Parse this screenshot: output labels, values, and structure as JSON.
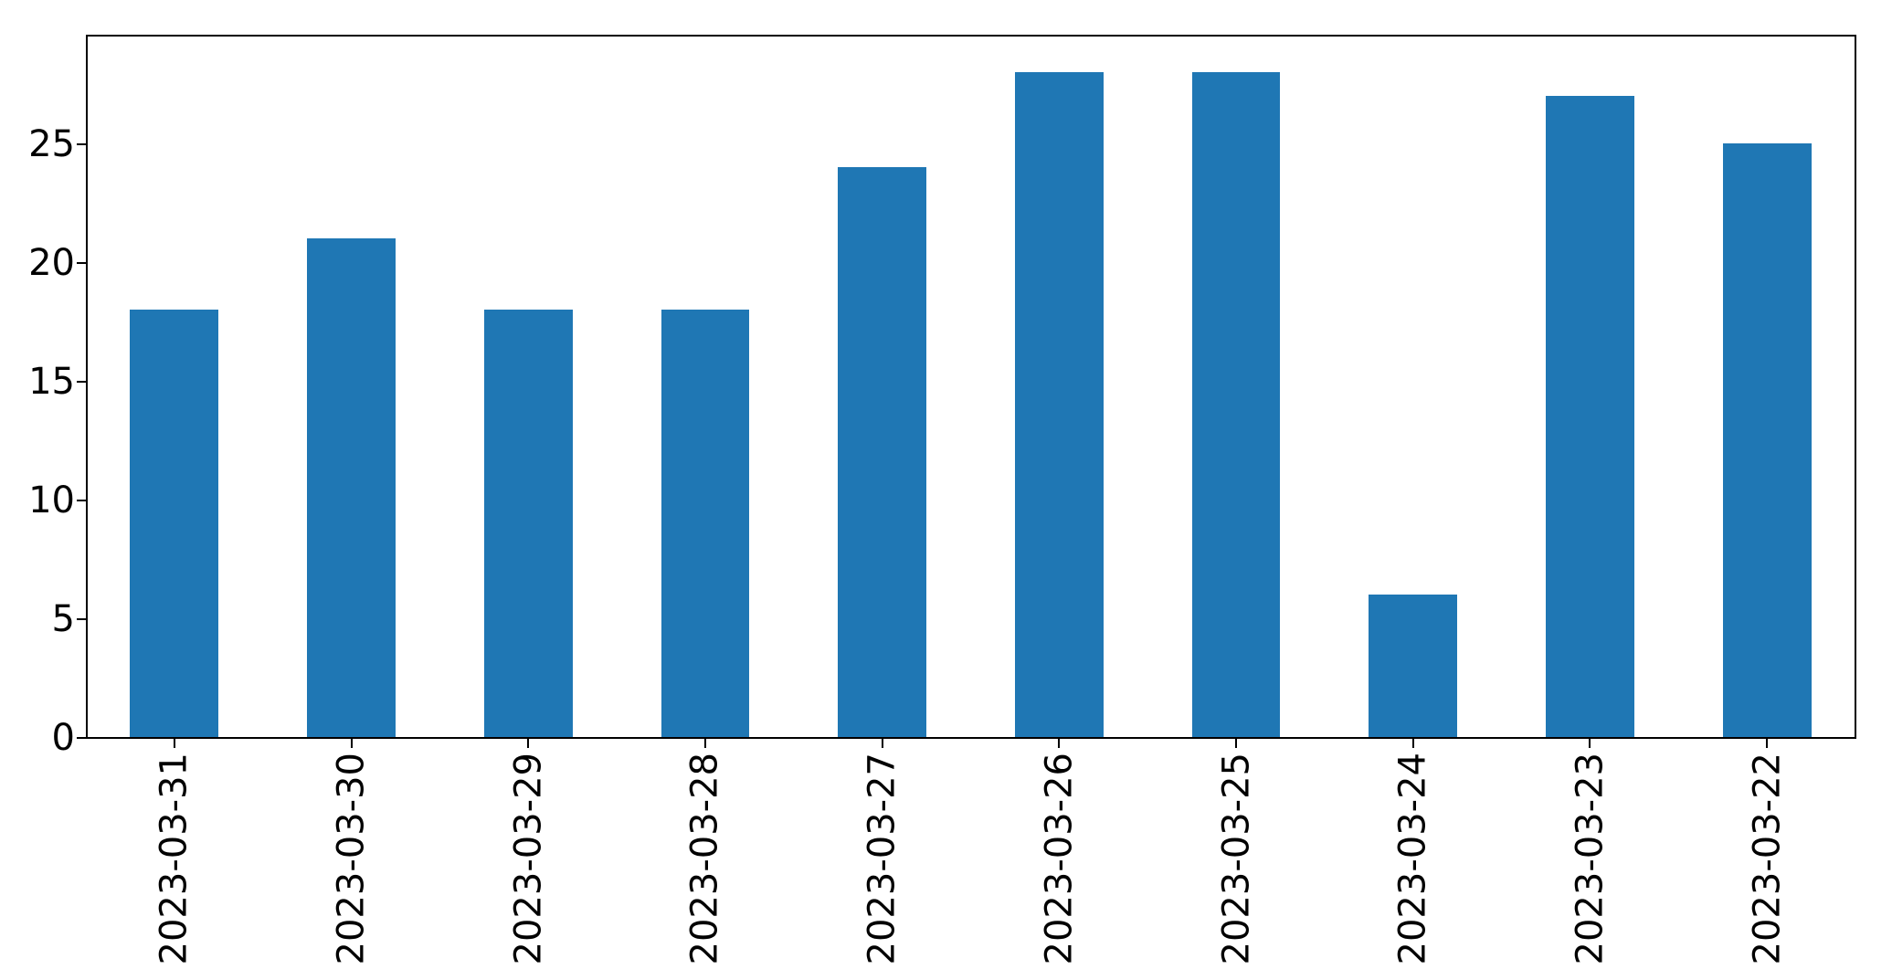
{
  "chart_data": {
    "type": "bar",
    "categories": [
      "2023-03-31",
      "2023-03-30",
      "2023-03-29",
      "2023-03-28",
      "2023-03-27",
      "2023-03-26",
      "2023-03-25",
      "2023-03-24",
      "2023-03-23",
      "2023-03-22"
    ],
    "values": [
      18,
      21,
      18,
      18,
      24,
      28,
      28,
      6,
      27,
      25
    ],
    "yticks": [
      0,
      5,
      10,
      15,
      20,
      25
    ],
    "ylim": [
      0,
      29.6
    ],
    "bar_color": "#1f77b4",
    "bar_width_fraction": 0.5,
    "xtick_rotation_deg": 90,
    "grid": false,
    "legend": false,
    "title": "",
    "xlabel": "",
    "ylabel": "",
    "background": "#ffffff",
    "spine_color": "#000000",
    "text_color": "#000000"
  }
}
